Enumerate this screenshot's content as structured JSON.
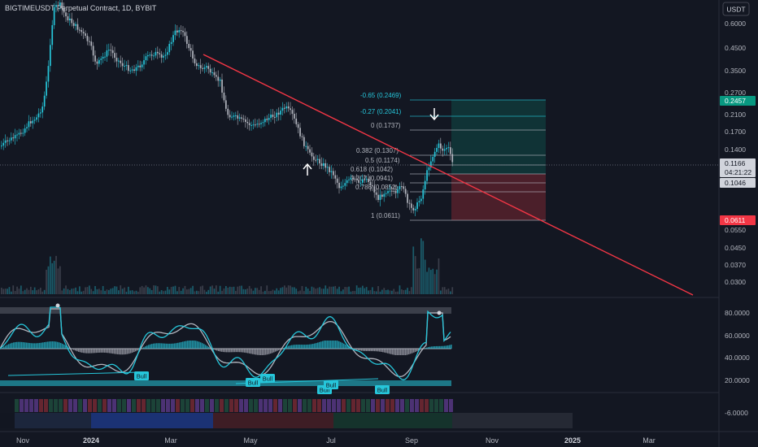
{
  "header": {
    "symbol_title": "BIGTIMEUSDT Perpetual Contract, 1D, BYBIT",
    "currency": "USDT"
  },
  "price_axis": {
    "ticks": [
      "0.6000",
      "0.4500",
      "0.3500",
      "0.2700",
      "0.2100",
      "0.1700",
      "0.1400",
      "0.0550",
      "0.0450",
      "0.0370",
      "0.0300"
    ],
    "tags": [
      {
        "label": "0.2457",
        "color": "#089981"
      },
      {
        "label": "0.1166",
        "color": "#d1d4dc"
      },
      {
        "label": "04:21:22",
        "color": "#d1d4dc"
      },
      {
        "label": "0.1046",
        "color": "#d1d4dc"
      },
      {
        "label": "0.0611",
        "color": "#f23645"
      }
    ]
  },
  "fib_levels": [
    {
      "label": "-0.65 (0.2469)",
      "color": "#26c6da"
    },
    {
      "label": "-0.27 (0.2041)",
      "color": "#26c6da"
    },
    {
      "label": "0 (0.1737)",
      "color": "#b2b5be"
    },
    {
      "label": "0.382 (0.1307)",
      "color": "#b2b5be"
    },
    {
      "label": "0.5 (0.1174)",
      "color": "#b2b5be"
    },
    {
      "label": "0.618 (0.1042)",
      "color": "#b2b5be"
    },
    {
      "label": "0.707 (0.0941)",
      "color": "#b2b5be"
    },
    {
      "label": "0.786 (0.0852)",
      "color": "#b2b5be"
    },
    {
      "label": "1 (0.0611)",
      "color": "#b2b5be"
    }
  ],
  "oscillator": {
    "ticks": [
      "80.0000",
      "60.0000",
      "40.0000",
      "20.0000"
    ],
    "signals": [
      "Bull",
      "Bull",
      "Bull",
      "Bull",
      "Bull",
      "Bull"
    ]
  },
  "bottom_panel": {
    "ticks": [
      "-6.0000"
    ]
  },
  "time_axis": {
    "labels": [
      "Nov",
      "2024",
      "Mar",
      "May",
      "Jul",
      "Sep",
      "Nov",
      "2025",
      "Mar"
    ]
  },
  "colors": {
    "background": "#131722",
    "up": "#26c6da",
    "down": "#b2b5be",
    "trendline": "#f23645",
    "target_zone": "#089981",
    "stop_zone": "#f23645"
  }
}
